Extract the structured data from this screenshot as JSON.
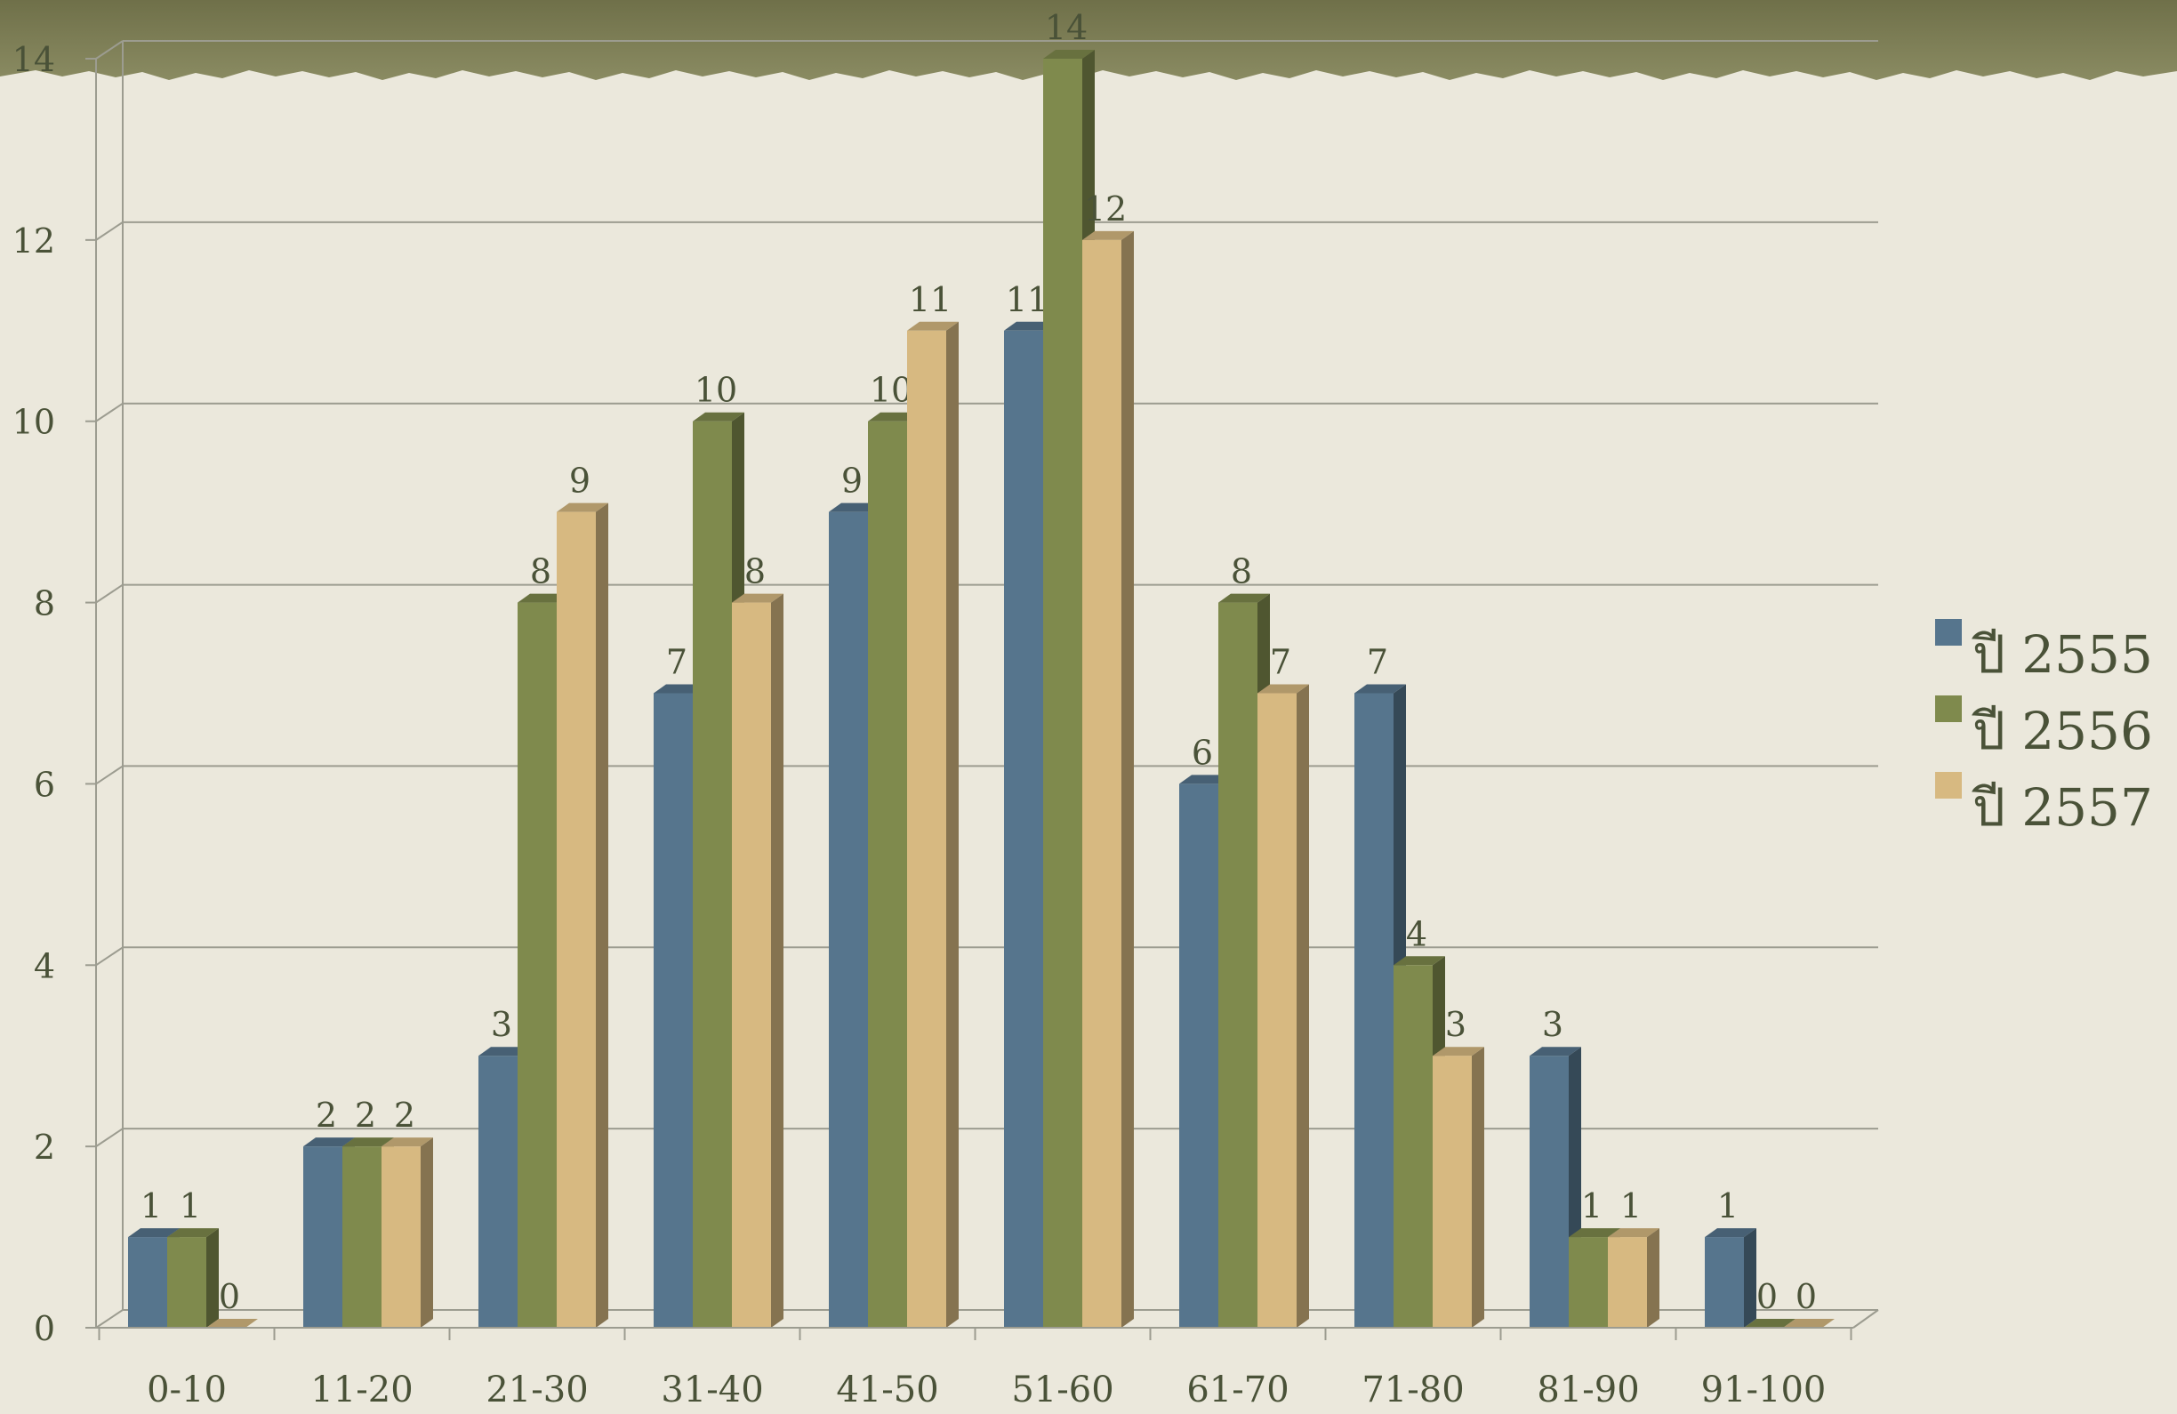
{
  "colors": {
    "background": "#ebe8dc",
    "banner": "#7c7d55",
    "grid": "#9c9c90",
    "text": "#4a5238"
  },
  "chart_data": {
    "type": "bar",
    "title": "",
    "xlabel": "",
    "ylabel": "",
    "ylim": [
      0,
      14
    ],
    "yticks": [
      0,
      2,
      4,
      6,
      8,
      10,
      12,
      14
    ],
    "grid": true,
    "legend_position": "right",
    "categories": [
      "0-10",
      "11-20",
      "21-30",
      "31-40",
      "41-50",
      "51-60",
      "61-70",
      "71-80",
      "81-90",
      "91-100"
    ],
    "series": [
      {
        "name": "ปี 2555",
        "color": "#56758d",
        "values": [
          1,
          2,
          3,
          7,
          9,
          11,
          6,
          7,
          3,
          1
        ]
      },
      {
        "name": "ปี 2556",
        "color": "#7f8a4d",
        "values": [
          1,
          2,
          8,
          10,
          10,
          14,
          8,
          4,
          1,
          0
        ]
      },
      {
        "name": "ปี 2557",
        "color": "#d7b981",
        "values": [
          0,
          2,
          9,
          8,
          11,
          12,
          7,
          3,
          1,
          0
        ]
      }
    ]
  }
}
